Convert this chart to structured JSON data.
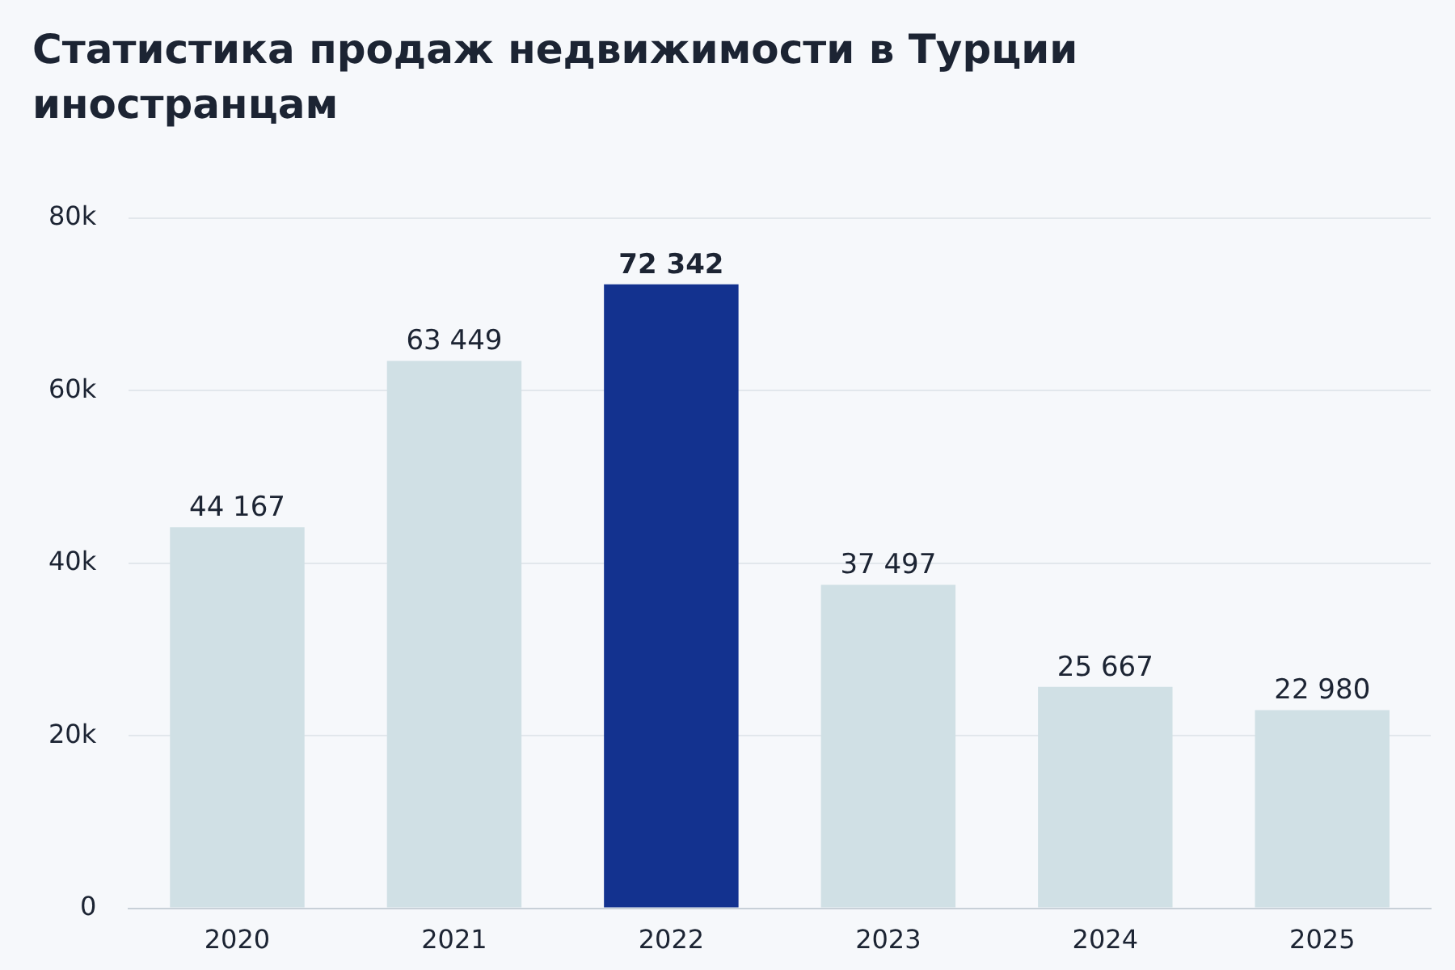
{
  "chart_data": {
    "type": "bar",
    "title": "Статистика продаж недвижимости в Турции иностранцам",
    "categories": [
      "2020",
      "2021",
      "2022",
      "2023",
      "2024",
      "2025"
    ],
    "values": [
      44167,
      63449,
      72342,
      37497,
      25667,
      22980
    ],
    "colors": [
      "#d0e0e5",
      "#d0e0e5",
      "#13328f",
      "#d0e0e5",
      "#d0e0e5",
      "#d0e0e5"
    ],
    "value_labels": [
      "44 167",
      "63 449",
      "72 342",
      "37 497",
      "25 667",
      "22 980"
    ],
    "ylim": [
      0,
      80000
    ],
    "yticks": [
      0,
      {
        "value": 20000,
        "label": "20k"
      },
      {
        "value": 40000,
        "label": "40k"
      },
      {
        "value": 60000,
        "label": "60k"
      },
      {
        "value": 80000,
        "label": "80k"
      }
    ],
    "grid": "y",
    "legend": false
  }
}
